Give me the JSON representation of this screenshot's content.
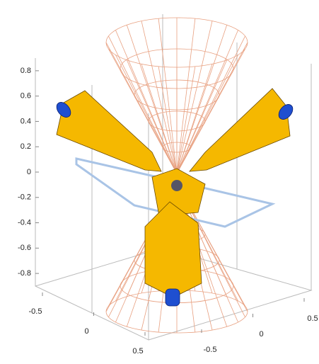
{
  "chart_data": {
    "type": "surface3d",
    "zlim": [
      -0.9,
      0.9
    ],
    "zticks": [
      0.8,
      0.6,
      0.4,
      0.2,
      0,
      -0.2,
      -0.4,
      -0.6,
      -0.8
    ],
    "xlim": [
      -0.5,
      0.5
    ],
    "xticks": [
      -0.5,
      0,
      0.5
    ],
    "ylim": [
      -0.5,
      0.5
    ],
    "yticks": [
      -0.5,
      0,
      0.5
    ]
  }
}
